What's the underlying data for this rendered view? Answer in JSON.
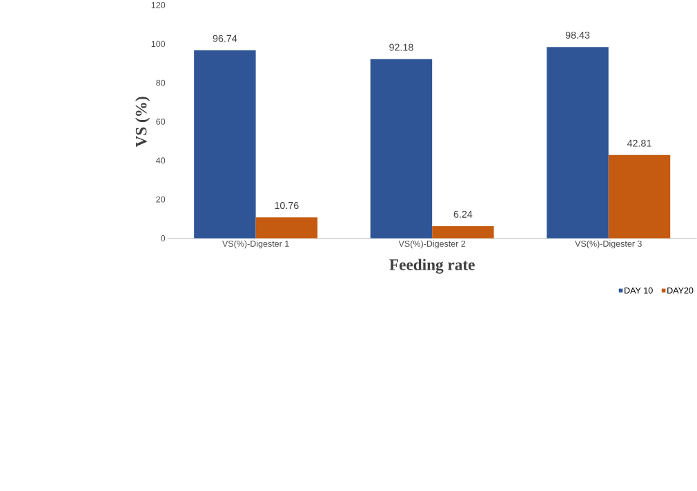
{
  "chart_data": {
    "type": "bar",
    "categories": [
      "VS(%)-Digester 1",
      "VS(%)-Digester 2",
      "VS(%)-Digester 3"
    ],
    "series": [
      {
        "name": "DAY 10",
        "color": "#2f5597",
        "values": [
          96.74,
          92.18,
          98.43
        ]
      },
      {
        "name": "DAY20",
        "color": "#c55a11",
        "values": [
          10.76,
          6.24,
          42.81
        ]
      }
    ],
    "xlabel": "Feeding rate",
    "ylabel": "VS (%)",
    "ylim": [
      0,
      120
    ],
    "yticks": [
      0,
      20,
      40,
      60,
      80,
      100,
      120
    ],
    "data_labels": true,
    "grid": false,
    "legend": "bottom right"
  }
}
